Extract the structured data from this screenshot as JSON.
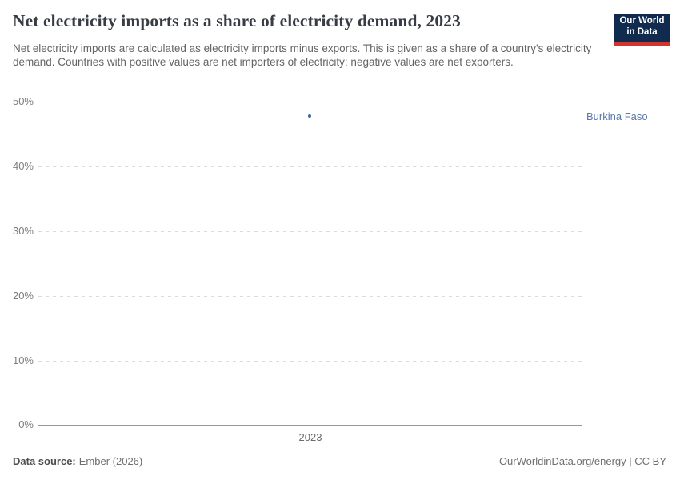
{
  "header": {
    "title": "Net electricity imports as a share of electricity demand, 2023",
    "subtitle": "Net electricity imports are calculated as electricity imports minus exports. This is given as a share of a country's electricity demand. Countries with positive values are net importers of electricity; negative values are net exporters.",
    "logo": {
      "line1": "Our World",
      "line2": "in Data"
    }
  },
  "chart_data": {
    "type": "scatter",
    "title": "Net electricity imports as a share of electricity demand, 2023",
    "x": [
      2023
    ],
    "xticks": [
      "2023"
    ],
    "yticks": [
      "0%",
      "10%",
      "20%",
      "30%",
      "40%",
      "50%"
    ],
    "ylim": [
      0,
      50
    ],
    "grid": "horizontal-dashed",
    "legend_position": "inline-right-label",
    "series": [
      {
        "name": "Burkina Faso",
        "values": [
          47.8
        ],
        "point_color": "#4068a3",
        "label_color": "#5878ab"
      }
    ]
  },
  "footer": {
    "source_label": "Data source:",
    "source_value": "Ember (2026)",
    "credit": "OurWorldinData.org/energy | CC BY"
  },
  "colors": {
    "title_text": "#383d45",
    "subtitle_text": "#646464",
    "axis_text": "#7d7d7d",
    "gridline": "#dcdcdc",
    "axis_line": "#999999",
    "logo_background": "#112b4e",
    "logo_accent_bar": "#d0342c"
  }
}
